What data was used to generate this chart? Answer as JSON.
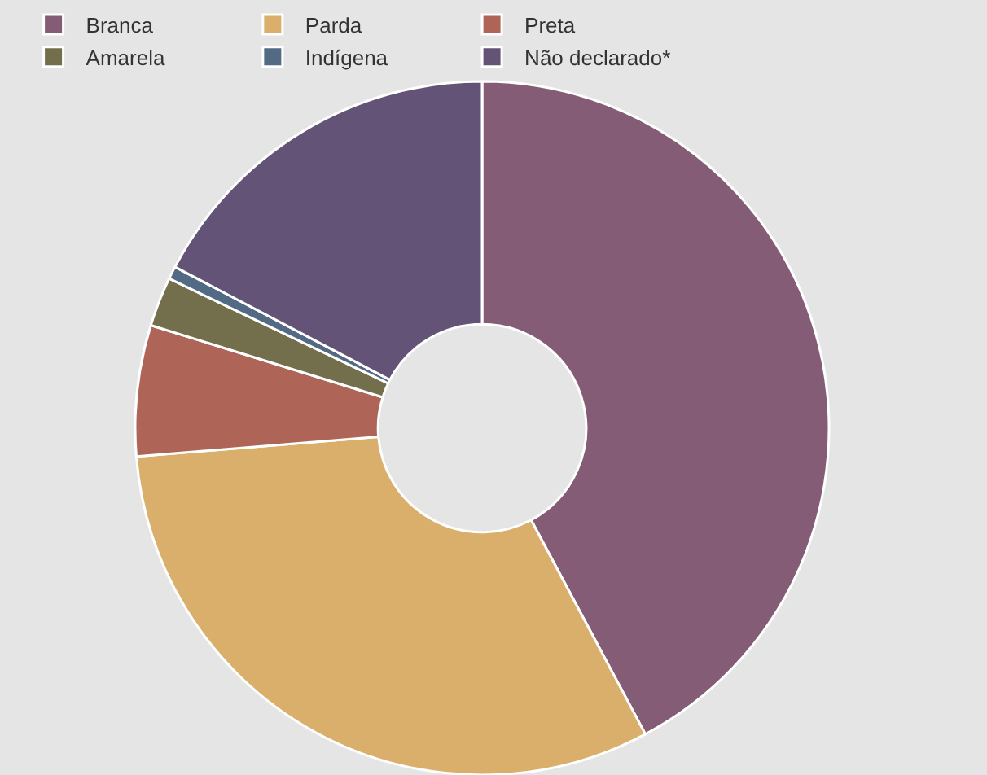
{
  "chart_data": {
    "type": "donut",
    "categories": [
      "Branca",
      "Parda",
      "Preta",
      "Amarela",
      "Indígena",
      "Não declarado*"
    ],
    "values": [
      42.2,
      31.5,
      6.1,
      2.3,
      0.6,
      17.3
    ],
    "colors": [
      "#855c75",
      "#d9af6b",
      "#af6458",
      "#736f4c",
      "#526a83",
      "#625377"
    ],
    "legend": "top left"
  }
}
